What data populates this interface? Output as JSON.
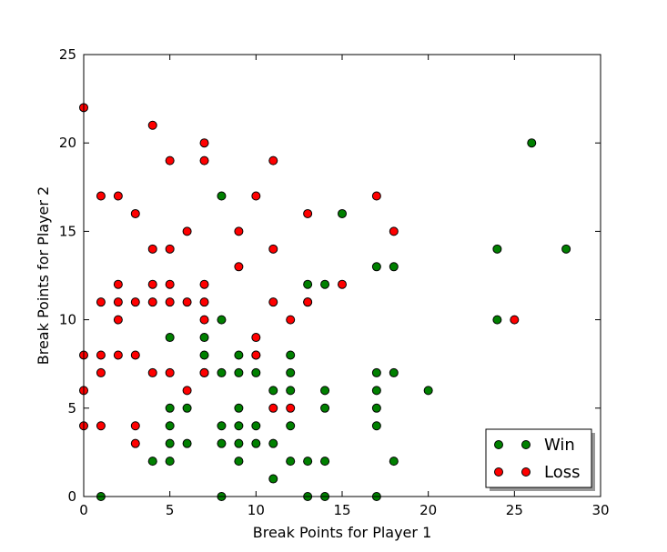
{
  "chart_data": {
    "type": "scatter",
    "xlabel": "Break Points for Player 1",
    "ylabel": "Break Points for Player 2",
    "xlim": [
      0,
      30
    ],
    "ylim": [
      0,
      25
    ],
    "xticks": [
      "0",
      "5",
      "10",
      "15",
      "20",
      "25",
      "30"
    ],
    "yticks": [
      "0",
      "5",
      "10",
      "15",
      "20",
      "25"
    ],
    "grid": false,
    "legend_position": "bottom-right",
    "series": [
      {
        "name": "Win",
        "color": "#008000",
        "points": [
          [
            1,
            0
          ],
          [
            4,
            2
          ],
          [
            5,
            2
          ],
          [
            5,
            3
          ],
          [
            5,
            4
          ],
          [
            5,
            5
          ],
          [
            5,
            9
          ],
          [
            6,
            3
          ],
          [
            6,
            5
          ],
          [
            7,
            7
          ],
          [
            7,
            8
          ],
          [
            7,
            9
          ],
          [
            8,
            0
          ],
          [
            8,
            3
          ],
          [
            8,
            4
          ],
          [
            8,
            7
          ],
          [
            8,
            10
          ],
          [
            8,
            17
          ],
          [
            9,
            2
          ],
          [
            9,
            3
          ],
          [
            9,
            4
          ],
          [
            9,
            5
          ],
          [
            9,
            7
          ],
          [
            9,
            8
          ],
          [
            10,
            3
          ],
          [
            10,
            4
          ],
          [
            10,
            7
          ],
          [
            10,
            8
          ],
          [
            11,
            1
          ],
          [
            11,
            3
          ],
          [
            11,
            6
          ],
          [
            12,
            2
          ],
          [
            12,
            4
          ],
          [
            12,
            6
          ],
          [
            12,
            7
          ],
          [
            12,
            8
          ],
          [
            13,
            0
          ],
          [
            13,
            2
          ],
          [
            13,
            11
          ],
          [
            13,
            12
          ],
          [
            14,
            0
          ],
          [
            14,
            2
          ],
          [
            14,
            5
          ],
          [
            14,
            6
          ],
          [
            14,
            12
          ],
          [
            15,
            16
          ],
          [
            17,
            0
          ],
          [
            17,
            4
          ],
          [
            17,
            5
          ],
          [
            17,
            6
          ],
          [
            17,
            7
          ],
          [
            17,
            13
          ],
          [
            18,
            2
          ],
          [
            18,
            7
          ],
          [
            18,
            13
          ],
          [
            20,
            6
          ],
          [
            24,
            10
          ],
          [
            24,
            14
          ],
          [
            26,
            20
          ],
          [
            28,
            14
          ]
        ]
      },
      {
        "name": "Loss",
        "color": "#ff0000",
        "points": [
          [
            0,
            4
          ],
          [
            0,
            6
          ],
          [
            0,
            8
          ],
          [
            0,
            22
          ],
          [
            1,
            4
          ],
          [
            1,
            7
          ],
          [
            1,
            8
          ],
          [
            1,
            11
          ],
          [
            1,
            17
          ],
          [
            2,
            8
          ],
          [
            2,
            10
          ],
          [
            2,
            11
          ],
          [
            2,
            12
          ],
          [
            2,
            17
          ],
          [
            3,
            3
          ],
          [
            3,
            4
          ],
          [
            3,
            8
          ],
          [
            3,
            11
          ],
          [
            3,
            16
          ],
          [
            4,
            7
          ],
          [
            4,
            11
          ],
          [
            4,
            12
          ],
          [
            4,
            14
          ],
          [
            4,
            21
          ],
          [
            5,
            7
          ],
          [
            5,
            11
          ],
          [
            5,
            12
          ],
          [
            5,
            14
          ],
          [
            5,
            19
          ],
          [
            6,
            6
          ],
          [
            6,
            11
          ],
          [
            6,
            15
          ],
          [
            7,
            7
          ],
          [
            7,
            10
          ],
          [
            7,
            11
          ],
          [
            7,
            12
          ],
          [
            7,
            19
          ],
          [
            7,
            20
          ],
          [
            9,
            13
          ],
          [
            9,
            15
          ],
          [
            10,
            8
          ],
          [
            10,
            9
          ],
          [
            10,
            17
          ],
          [
            11,
            5
          ],
          [
            11,
            11
          ],
          [
            11,
            14
          ],
          [
            11,
            19
          ],
          [
            12,
            5
          ],
          [
            12,
            10
          ],
          [
            13,
            11
          ],
          [
            13,
            16
          ],
          [
            15,
            12
          ],
          [
            17,
            17
          ],
          [
            18,
            15
          ],
          [
            25,
            10
          ]
        ]
      }
    ]
  }
}
